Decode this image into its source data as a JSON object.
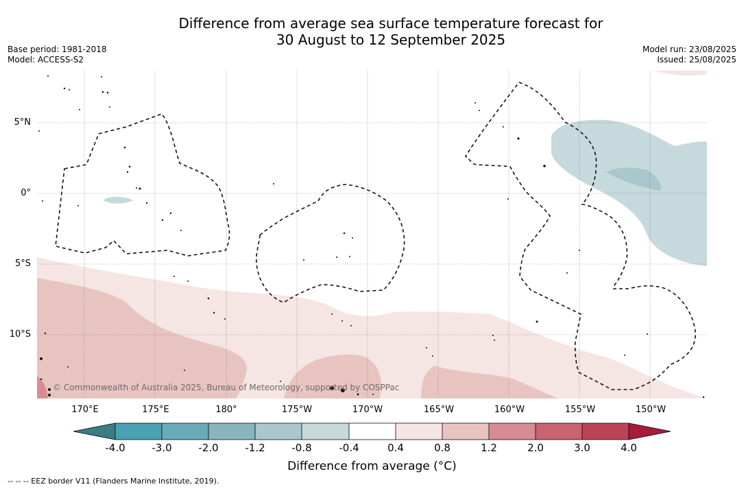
{
  "title": {
    "line1": "Difference from average sea surface temperature forecast for",
    "line2": "30 August to 12 September 2025"
  },
  "meta": {
    "base_period": "Base period: 1981-2018",
    "model": "Model: ACCESS-S2",
    "model_run": "Model run: 23/08/2025",
    "issued": "Issued: 25/08/2025"
  },
  "axes": {
    "lat_labels": [
      "5°N",
      "0°",
      "5°S",
      "10°S"
    ],
    "lon_labels": [
      "170°E",
      "175°E",
      "180°",
      "175°W",
      "170°W",
      "165°W",
      "160°W",
      "155°W",
      "150°W"
    ]
  },
  "colorbar": {
    "tick_labels": [
      "-4.0",
      "-3.0",
      "-2.0",
      "-1.2",
      "-0.8",
      "-0.4",
      "0.4",
      "0.8",
      "1.2",
      "2.0",
      "3.0",
      "4.0"
    ],
    "colors": [
      "#3a7d87",
      "#4aa1b1",
      "#6aabb9",
      "#88b5be",
      "#a9c7cc",
      "#c6d9dc",
      "#ffffff",
      "#f5e5e3",
      "#e8c4c1",
      "#d78c93",
      "#c8636f",
      "#bc4555",
      "#a81c3a"
    ],
    "title": "Difference from average (°C)"
  },
  "copyright": "© Commonwealth of Australia 2025, Bureau of Meteorology, supported by COSPPac",
  "footnote": "-- -- -- EEZ border V11 (Flanders Marine Institute, 2019)."
}
